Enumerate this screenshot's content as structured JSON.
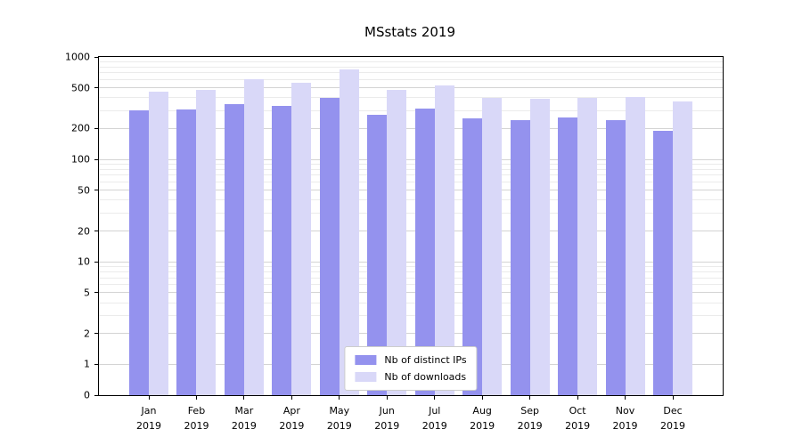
{
  "chart_data": {
    "type": "bar",
    "title": "MSstats 2019",
    "categories": [
      "Jan 2019",
      "Feb 2019",
      "Mar 2019",
      "Apr 2019",
      "May 2019",
      "Jun 2019",
      "Jul 2019",
      "Aug 2019",
      "Sep 2019",
      "Oct 2019",
      "Nov 2019",
      "Dec 2019"
    ],
    "series": [
      {
        "name": "Nb of distinct IPs",
        "color": "#9492ee",
        "values": [
          300,
          310,
          345,
          330,
          395,
          275,
          315,
          250,
          240,
          255,
          240,
          190
        ]
      },
      {
        "name": "Nb of downloads",
        "color": "#d9d8f8",
        "values": [
          460,
          480,
          610,
          560,
          760,
          480,
          530,
          400,
          390,
          400,
          410,
          370
        ]
      }
    ],
    "xlabel": "",
    "ylabel": "",
    "yscale": "symlog",
    "yticks": [
      0,
      1,
      2,
      5,
      10,
      20,
      50,
      100,
      200,
      500,
      1000
    ],
    "ylim": [
      0,
      1000
    ],
    "grid": true,
    "legend_position": "lower center"
  }
}
